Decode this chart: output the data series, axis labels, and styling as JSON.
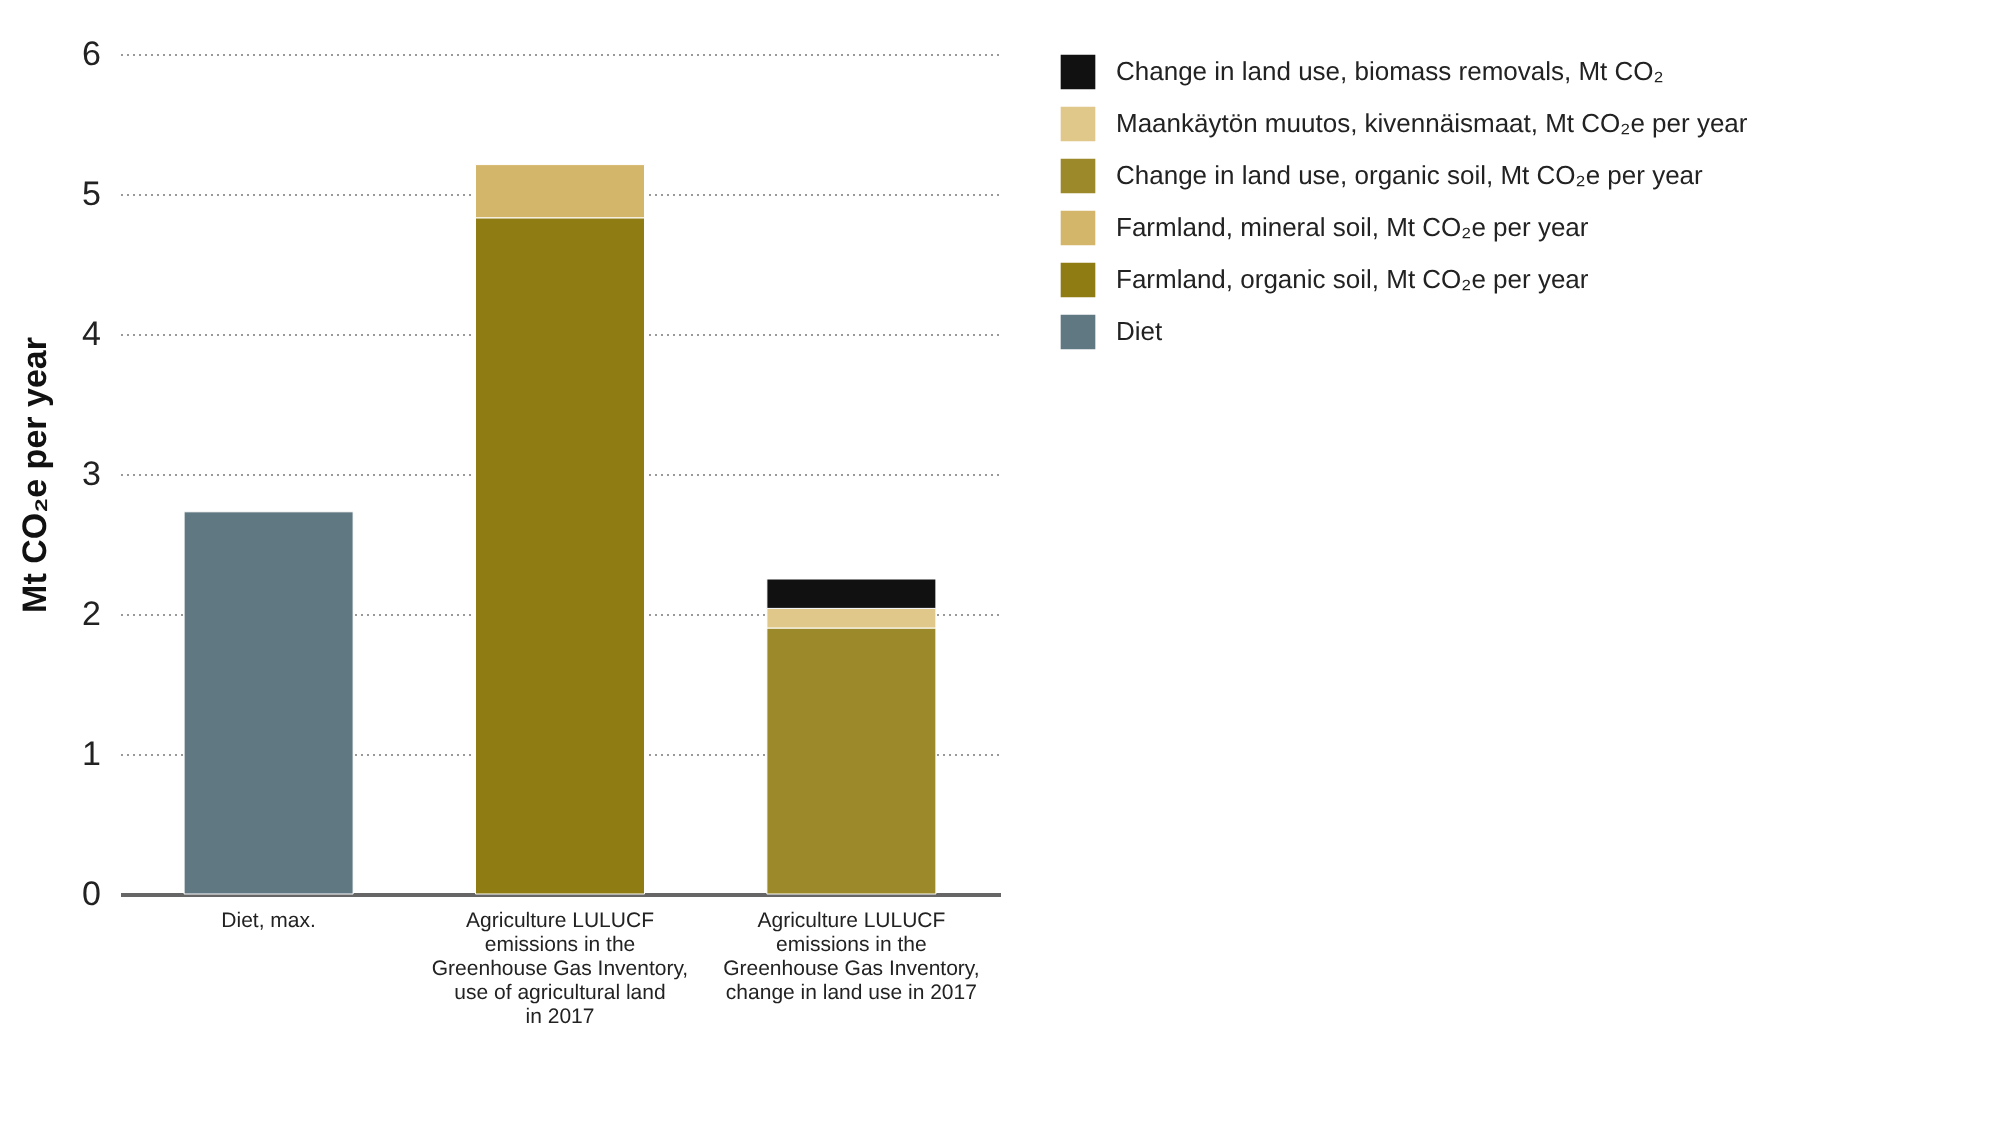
{
  "chart_data": {
    "type": "bar",
    "stacked": true,
    "ylabel": "Mt CO₂e per year",
    "categories": [
      "Diet, max.",
      "Agriculture LULUCF emissions in the Greenhouse Gas Inventory, use of agricultural land in 2017",
      "Agriculture LULUCF emissions in the Greenhouse Gas Inventory, change in land use in 2017"
    ],
    "series": [
      {
        "name": "Diet",
        "color": "#607882",
        "values": [
          2.73,
          null,
          null
        ]
      },
      {
        "name": "Farmland, organic soil, Mt CO₂e per year",
        "color": "#8f7d14",
        "values": [
          null,
          4.83,
          null
        ]
      },
      {
        "name": "Farmland, mineral soil, Mt CO₂e per year",
        "color": "#d4b66a",
        "values": [
          null,
          0.38,
          null
        ]
      },
      {
        "name": "Change in land use, organic soil, Mt CO₂e per year",
        "color": "#9c8a2a",
        "values": [
          null,
          null,
          1.9
        ]
      },
      {
        "name": "Maankäytön muutos, kivennäismaat, Mt CO₂e per year",
        "color": "#e0c88a",
        "values": [
          null,
          null,
          0.14
        ]
      },
      {
        "name": "Change in land use, biomass removals, Mt CO₂",
        "color": "#111111",
        "values": [
          null,
          null,
          0.21
        ]
      }
    ],
    "ylim": [
      0,
      6
    ],
    "yticks": [
      0,
      1,
      2,
      3,
      4,
      5,
      6
    ],
    "grid": "y",
    "legend": "right"
  }
}
